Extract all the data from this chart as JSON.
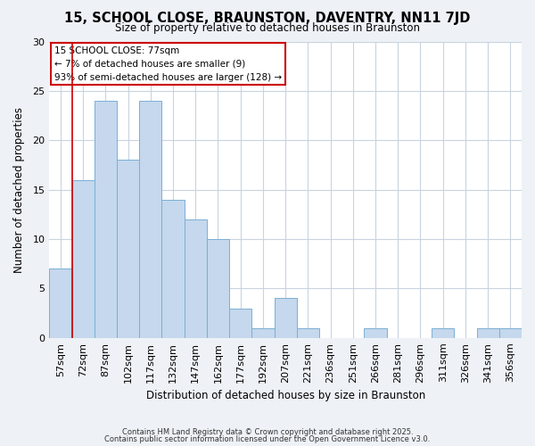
{
  "title": "15, SCHOOL CLOSE, BRAUNSTON, DAVENTRY, NN11 7JD",
  "subtitle": "Size of property relative to detached houses in Braunston",
  "xlabel": "Distribution of detached houses by size in Braunston",
  "ylabel": "Number of detached properties",
  "categories": [
    "57sqm",
    "72sqm",
    "87sqm",
    "102sqm",
    "117sqm",
    "132sqm",
    "147sqm",
    "162sqm",
    "177sqm",
    "192sqm",
    "207sqm",
    "221sqm",
    "236sqm",
    "251sqm",
    "266sqm",
    "281sqm",
    "296sqm",
    "311sqm",
    "326sqm",
    "341sqm",
    "356sqm"
  ],
  "values": [
    7,
    16,
    24,
    18,
    24,
    14,
    12,
    10,
    3,
    1,
    4,
    1,
    0,
    0,
    1,
    0,
    0,
    1,
    0,
    1,
    1
  ],
  "bar_color": "#c5d8ed",
  "bar_edge_color": "#7aafd4",
  "property_line_x": 1.0,
  "property_line_color": "#cc0000",
  "ylim": [
    0,
    30
  ],
  "yticks": [
    0,
    5,
    10,
    15,
    20,
    25,
    30
  ],
  "annotation_title": "15 SCHOOL CLOSE: 77sqm",
  "annotation_line1": "← 7% of detached houses are smaller (9)",
  "annotation_line2": "93% of semi-detached houses are larger (128) →",
  "annotation_box_color": "#ffffff",
  "annotation_border_color": "#cc0000",
  "footer1": "Contains HM Land Registry data © Crown copyright and database right 2025.",
  "footer2": "Contains public sector information licensed under the Open Government Licence v3.0.",
  "background_color": "#eef2f7",
  "plot_background": "#ffffff",
  "grid_color": "#c8d4e0"
}
